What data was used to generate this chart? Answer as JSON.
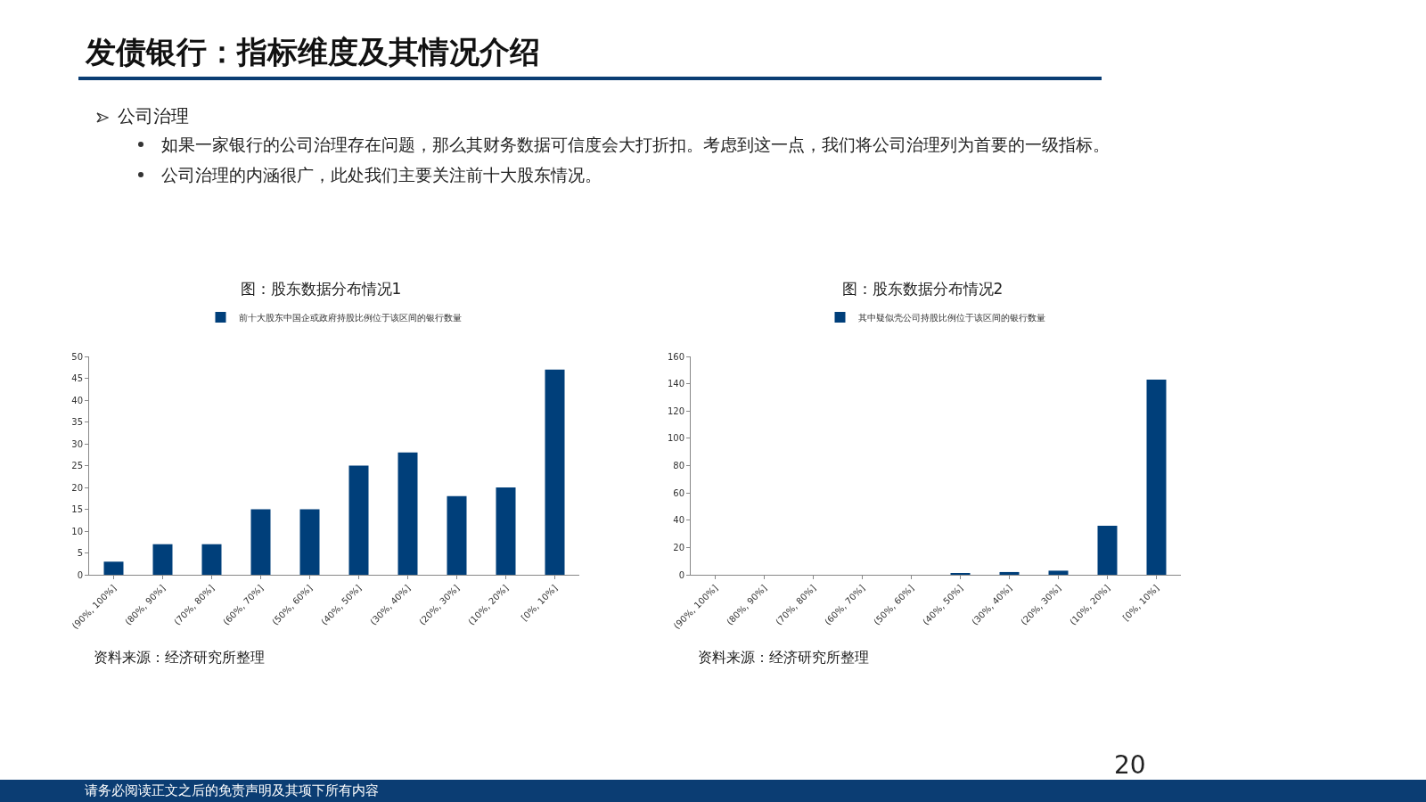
{
  "chart_data": [
    {
      "type": "bar",
      "title": "图：股东数据分布情况1",
      "categories": [
        "(90%, 100%]",
        "(80%, 90%]",
        "(70%, 80%]",
        "(60%, 70%]",
        "(50%, 60%]",
        "(40%, 50%]",
        "(30%, 40%]",
        "(20%, 30%]",
        "(10%, 20%]",
        "[0%, 10%]"
      ],
      "series": [
        {
          "name": "前十大股东中国企或政府持股比例位于该区间的银行数量",
          "color": "#003f7a",
          "values": [
            3,
            7,
            7,
            15,
            15,
            25,
            28,
            18,
            20,
            47
          ]
        }
      ],
      "ylim": [
        0,
        50
      ],
      "yticks": [
        0,
        5,
        10,
        15,
        20,
        25,
        30,
        35,
        40,
        45,
        50
      ],
      "grid": false,
      "legend": "top",
      "annotations": [
        "发债银行：指标维度及其情况介绍",
        "公司治理",
        "如果一家银行的公司治理存在问题，那么其财务数据可信度会大打折扣。考虑到这一点，我们将公司治理列为首要的一级指标。",
        "公司治理的内涵很广，此处我们主要关注前十大股东情况。",
        "资料来源：经济研究所整理",
        "请务必阅读正文之后的免责声明及其项下所有内容",
        "20"
      ]
    },
    {
      "type": "bar",
      "title": "图：股东数据分布情况2",
      "categories": [
        "(90%, 100%]",
        "(80%, 90%]",
        "(70%, 80%]",
        "(60%, 70%]",
        "(50%, 60%]",
        "(40%, 50%]",
        "(30%, 40%]",
        "(20%, 30%]",
        "(10%, 20%]",
        "[0%, 10%]"
      ],
      "series": [
        {
          "name": "其中疑似壳公司持股比例位于该区间的银行数量",
          "color": "#003f7a",
          "values": [
            0,
            0,
            0,
            0,
            0,
            1,
            2,
            3,
            36,
            143
          ]
        }
      ],
      "ylim": [
        0,
        160
      ],
      "yticks": [
        0,
        20,
        40,
        60,
        80,
        100,
        120,
        140,
        160
      ],
      "grid": false,
      "legend": "top",
      "annotations": [
        "资料来源：经济研究所整理"
      ]
    }
  ]
}
